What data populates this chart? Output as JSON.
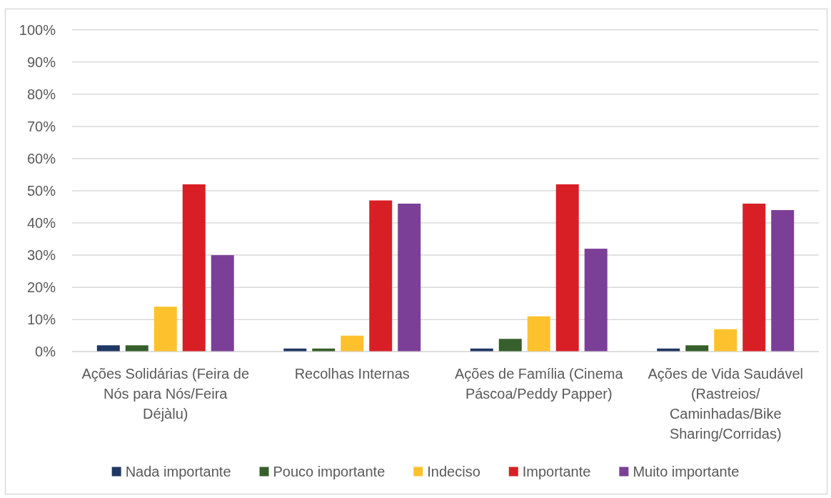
{
  "chart_data": {
    "type": "bar",
    "categories": [
      "Ações Solidárias (Feira de Nós para Nós/Feira Déjàlu)",
      "Recolhas Internas",
      "Ações de Família (Cinema Páscoa/Peddy Papper)",
      "Ações de Vida Saudável (Rastreios/Caminhadas/Bike Sharing/Corridas)"
    ],
    "series": [
      {
        "name": "Nada importante",
        "color": "#203864",
        "values": [
          2,
          1,
          1,
          1
        ]
      },
      {
        "name": "Pouco importante",
        "color": "#375f2b",
        "values": [
          2,
          1,
          4,
          2
        ]
      },
      {
        "name": "Indeciso",
        "color": "#fec12e",
        "values": [
          14,
          5,
          11,
          7
        ]
      },
      {
        "name": "Importante",
        "color": "#d91f26",
        "values": [
          52,
          47,
          52,
          46
        ]
      },
      {
        "name": "Muito importante",
        "color": "#7b3f97",
        "values": [
          30,
          46,
          32,
          44
        ]
      }
    ],
    "ylim": [
      0,
      100
    ],
    "yticks": [
      {
        "value": 0,
        "label": "0%"
      },
      {
        "value": 10,
        "label": "10%"
      },
      {
        "value": 20,
        "label": "20%"
      },
      {
        "value": 30,
        "label": "30%"
      },
      {
        "value": 40,
        "label": "40%"
      },
      {
        "value": 50,
        "label": "50%"
      },
      {
        "value": 60,
        "label": "60%"
      },
      {
        "value": 70,
        "label": "70%"
      },
      {
        "value": 80,
        "label": "80%"
      },
      {
        "value": 90,
        "label": "90%"
      },
      {
        "value": 100,
        "label": "100%"
      }
    ],
    "grid": "y",
    "legend": "bottom"
  }
}
